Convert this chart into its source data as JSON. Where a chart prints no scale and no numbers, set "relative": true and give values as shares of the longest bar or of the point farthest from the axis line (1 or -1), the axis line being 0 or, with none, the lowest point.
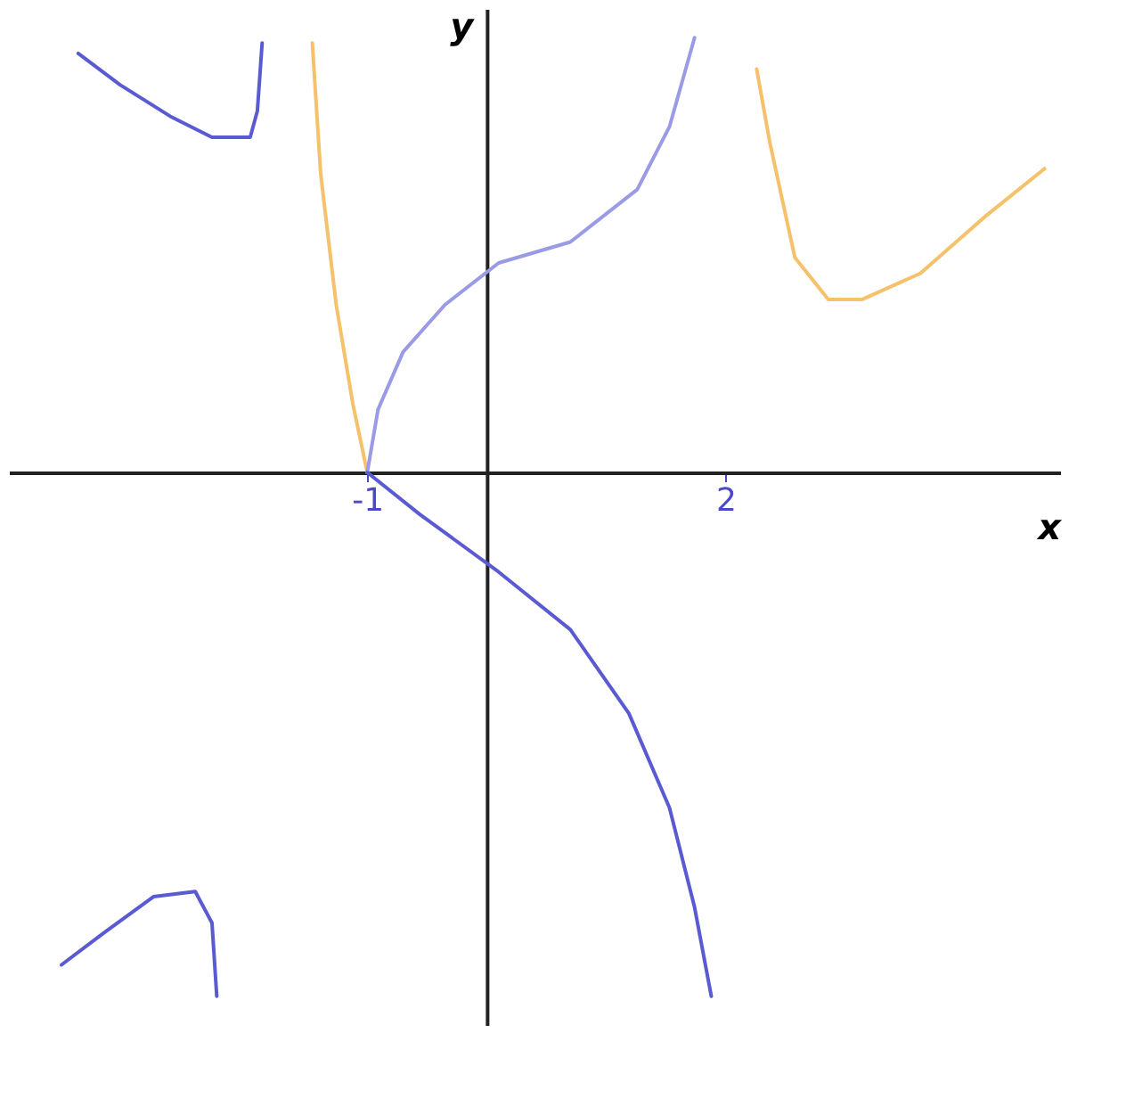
{
  "chart_data": {
    "type": "line",
    "relative": true,
    "xlabel": "x",
    "ylabel": "y",
    "xlim": [
      -4.0,
      4.8
    ],
    "xticks": [
      -1,
      2
    ],
    "tick_labels": "x",
    "grid": false,
    "series": [
      {
        "color": "#5a5ad2",
        "x": [
          -3.42,
          -3.07,
          -2.65,
          -2.3,
          -1.98,
          -1.92,
          -1.88
        ],
        "values": [
          0.8,
          0.74,
          0.68,
          0.64,
          0.64,
          0.69,
          0.82
        ]
      },
      {
        "color": "#f5c16a",
        "x": [
          -1.46,
          -1.39,
          -1.26,
          -1.12,
          -1.0
        ],
        "values": [
          0.82,
          0.57,
          0.32,
          0.13,
          0.0
        ]
      },
      {
        "color": "#9a9ae6",
        "x": [
          -1.0,
          -0.91,
          -0.7,
          -0.35,
          0.1,
          0.7,
          1.26,
          1.53,
          1.74
        ],
        "values": [
          0.0,
          0.12,
          0.23,
          0.32,
          0.4,
          0.44,
          0.54,
          0.66,
          0.83
        ]
      },
      {
        "color": "#f5c16a",
        "x": [
          2.26,
          2.37,
          2.58,
          2.86,
          3.14,
          3.63,
          4.18,
          4.67
        ],
        "values": [
          0.77,
          0.63,
          0.41,
          0.33,
          0.33,
          0.38,
          0.49,
          0.58
        ]
      },
      {
        "color": "#5a5ad2",
        "x": [
          -1.0,
          -0.56,
          0.1,
          0.7,
          1.19,
          1.53,
          1.74,
          1.88
        ],
        "values": [
          0.0,
          -0.08,
          -0.19,
          -0.3,
          -0.46,
          -0.64,
          -0.83,
          -1.0
        ]
      },
      {
        "color": "#5a5ad2",
        "x": [
          -3.56,
          -3.21,
          -2.79,
          -2.44,
          -2.3,
          -2.26
        ],
        "values": [
          -0.94,
          -0.88,
          -0.81,
          -0.8,
          -0.86,
          -1.0
        ]
      }
    ]
  }
}
